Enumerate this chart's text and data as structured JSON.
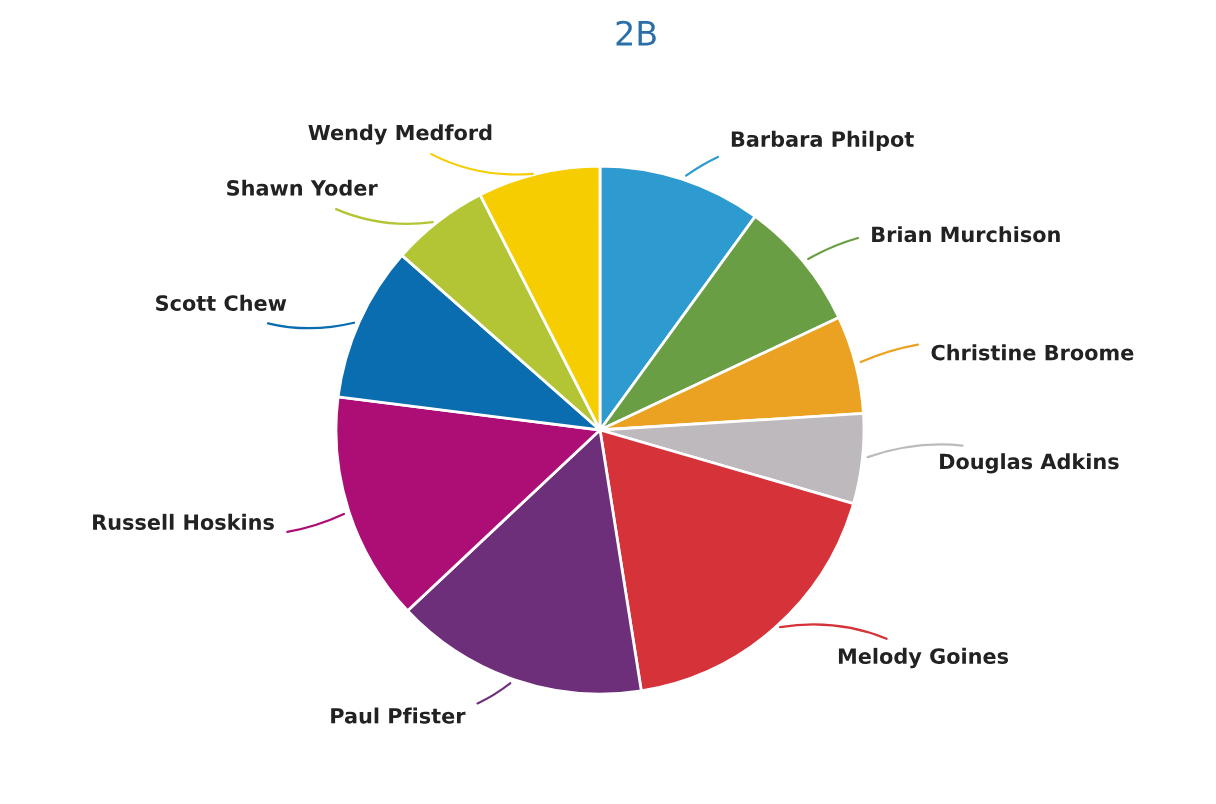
{
  "chart_data": {
    "type": "pie",
    "title": "2B",
    "categories": [
      "Barbara Philpot",
      "Brian Murchison",
      "Christine Broome",
      "Douglas Adkins",
      "Melody Goines",
      "Paul Pfister",
      "Russell Hoskins",
      "Scott Chew",
      "Shawn Yoder",
      "Wendy Medford"
    ],
    "values": [
      10,
      8,
      6,
      5.5,
      18,
      15.5,
      14,
      9.5,
      6,
      7.5
    ],
    "colors": [
      "#2e9bd0",
      "#6a9e45",
      "#eba122",
      "#bdb9bd",
      "#d63239",
      "#6e2f7a",
      "#ad0e75",
      "#0a6db0",
      "#b3c535",
      "#f6cd00"
    ]
  }
}
